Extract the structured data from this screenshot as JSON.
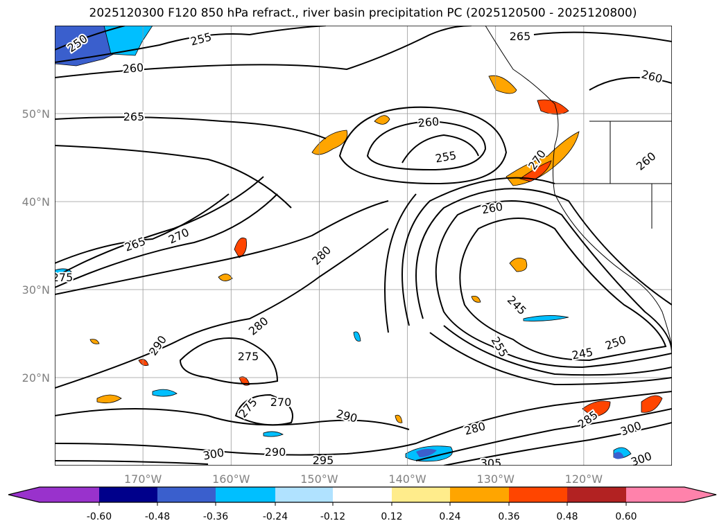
{
  "title": "2025120300 F120 850 hPa refract., river basin precipitation PC (2025120500 - 2025120800)",
  "map": {
    "extent": {
      "lon": [
        -180,
        -110
      ],
      "lat": [
        10,
        60
      ]
    },
    "lat_labels": [
      "50°N",
      "40°N",
      "30°N",
      "20°N"
    ],
    "lon_labels": [
      "170°W",
      "160°W",
      "150°W",
      "140°W",
      "130°W",
      "120°W"
    ],
    "contour_labels": [
      "250",
      "255",
      "260",
      "265",
      "265",
      "260",
      "260",
      "255",
      "270",
      "260",
      "260",
      "265",
      "270",
      "275",
      "280",
      "280",
      "290",
      "275",
      "275",
      "270",
      "245",
      "255",
      "245",
      "250",
      "290",
      "280",
      "285",
      "300",
      "300",
      "290",
      "295",
      "305",
      "300"
    ]
  },
  "colorbar": {
    "colors": [
      "#9932cc",
      "#00008b",
      "#3a5fcd",
      "#00bfff",
      "#b0e2ff",
      "#ffffff",
      "#ffec8b",
      "#ffa500",
      "#ff4500",
      "#b22222",
      "#ff82ab"
    ],
    "ticks": [
      "-0.60",
      "-0.48",
      "-0.36",
      "-0.24",
      "-0.12",
      "0.12",
      "0.24",
      "0.36",
      "0.48",
      "0.60"
    ]
  }
}
